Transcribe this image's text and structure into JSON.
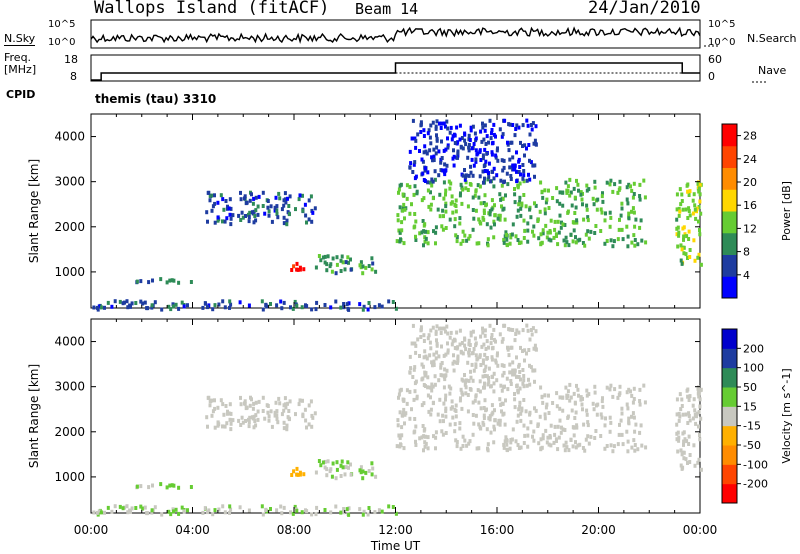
{
  "header": {
    "site": "Wallops Island (fitACF)",
    "beam": "Beam 14",
    "date": "24/Jan/2010"
  },
  "side_labels": {
    "nsky": "N.Sky",
    "freq_line1": "Freq.",
    "freq_line2": "[MHz]",
    "cpid": "CPID",
    "nsearch": "N.Search",
    "nave": "Nave"
  },
  "noise_axis": {
    "left_ticks": [
      "10^5",
      "10^0"
    ],
    "right_ticks": [
      "10^5",
      "10^0"
    ]
  },
  "freq_axis": {
    "left_ticks": [
      "18",
      "8"
    ],
    "right_ticks": [
      "60",
      "0"
    ]
  },
  "cpid_text": "themis (tau) 3310",
  "colors": {
    "power_scale": [
      "#0000ff",
      "#1e3ca0",
      "#2e8b57",
      "#66cc33",
      "#ffd700",
      "#ff8c00",
      "#ff4500",
      "#ff0000"
    ],
    "velocity_scale": [
      "#ff0000",
      "#ff4500",
      "#ff8c00",
      "#ffb000",
      "#c8c8c0",
      "#66cc33",
      "#2e8b57",
      "#1e3ca0",
      "#0000cc"
    ]
  },
  "chart_data": [
    {
      "type": "heatmap",
      "title": "",
      "xlabel": "",
      "ylabel": "Slant Range [km]",
      "y_ticks": [
        1000,
        2000,
        3000,
        4000
      ],
      "ylim": [
        200,
        4500
      ],
      "xlim": [
        "00:00",
        "24:00"
      ],
      "colorbar": {
        "label": "Power [dB]",
        "ticks": [
          4,
          8,
          12,
          16,
          20,
          24,
          28
        ],
        "range": [
          0,
          30
        ]
      },
      "echo_regions": [
        {
          "t_start": 0.9,
          "t_end": 4.0,
          "range_km": [
            800,
            900
          ],
          "value": 8
        },
        {
          "t_start": 4.5,
          "t_end": 8.8,
          "range_km": [
            2100,
            2800
          ],
          "value": 6
        },
        {
          "t_start": 7.8,
          "t_end": 8.8,
          "range_km": [
            1050,
            1250
          ],
          "value": 28
        },
        {
          "t_start": 8.8,
          "t_end": 11.2,
          "range_km": [
            1000,
            1400
          ],
          "value": 10
        },
        {
          "t_start": 12.0,
          "t_end": 21.8,
          "range_km": [
            1600,
            3100
          ],
          "value": 12
        },
        {
          "t_start": 12.5,
          "t_end": 17.5,
          "range_km": [
            3000,
            4400
          ],
          "value": 4
        },
        {
          "t_start": 23.0,
          "t_end": 24.0,
          "range_km": [
            1200,
            3100
          ],
          "value": 14
        },
        {
          "t_start": 0.0,
          "t_end": 12.0,
          "range_km": [
            200,
            400
          ],
          "value": 6
        }
      ]
    },
    {
      "type": "heatmap",
      "title": "",
      "xlabel": "Time UT",
      "ylabel": "Slant Range [km]",
      "y_ticks": [
        1000,
        2000,
        3000,
        4000
      ],
      "ylim": [
        200,
        4500
      ],
      "x_ticks": [
        "00:00",
        "04:00",
        "08:00",
        "12:00",
        "16:00",
        "20:00",
        "00:00"
      ],
      "colorbar": {
        "label": "Velocity [m s^-1]",
        "ticks": [
          200,
          100,
          50,
          15,
          -15,
          -50,
          -100,
          -200
        ],
        "range": [
          -250,
          250
        ]
      },
      "echo_regions": [
        {
          "t_start": 0.9,
          "t_end": 4.0,
          "range_km": [
            800,
            900
          ],
          "value": 30
        },
        {
          "t_start": 4.5,
          "t_end": 8.8,
          "range_km": [
            2100,
            2800
          ],
          "value": 0
        },
        {
          "t_start": 7.8,
          "t_end": 8.8,
          "range_km": [
            1050,
            1250
          ],
          "value": -40
        },
        {
          "t_start": 8.8,
          "t_end": 11.2,
          "range_km": [
            1000,
            1400
          ],
          "value": 30
        },
        {
          "t_start": 12.0,
          "t_end": 21.8,
          "range_km": [
            1600,
            3100
          ],
          "value": 0
        },
        {
          "t_start": 12.5,
          "t_end": 17.5,
          "range_km": [
            3000,
            4400
          ],
          "value": 0
        },
        {
          "t_start": 23.0,
          "t_end": 24.0,
          "range_km": [
            1200,
            3100
          ],
          "value": 0
        },
        {
          "t_start": 0.0,
          "t_end": 12.0,
          "range_km": [
            200,
            400
          ],
          "value": 25
        }
      ]
    }
  ]
}
